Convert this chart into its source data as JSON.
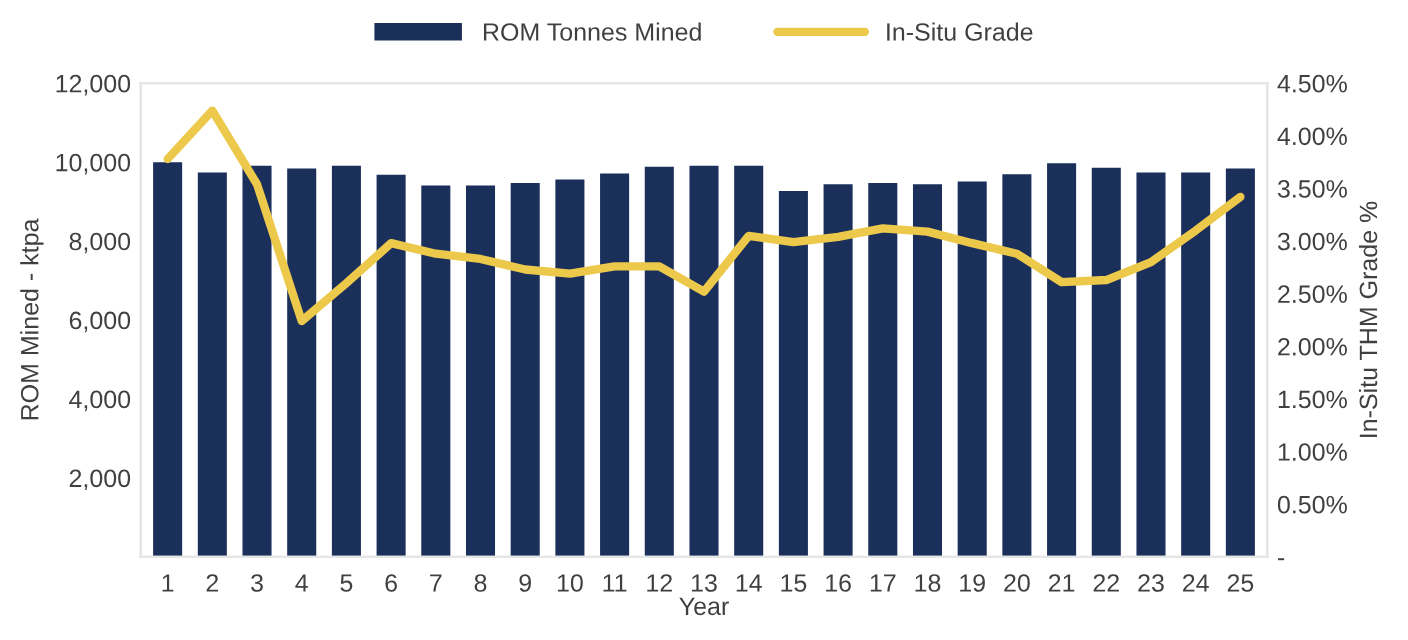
{
  "chart_data": {
    "type": "bar",
    "xlabel": "Year",
    "ylabel": "ROM Mined - ktpa",
    "y2label": "In-Situ THM Grade %",
    "categories": [
      "1",
      "2",
      "3",
      "4",
      "5",
      "6",
      "7",
      "8",
      "9",
      "10",
      "11",
      "12",
      "13",
      "14",
      "15",
      "16",
      "17",
      "18",
      "19",
      "20",
      "21",
      "22",
      "23",
      "24",
      "25"
    ],
    "series": [
      {
        "name": "ROM Tonnes Mined",
        "color": "#1b2f5b",
        "values": [
          10000,
          9740,
          9910,
          9840,
          9910,
          9680,
          9410,
          9410,
          9470,
          9560,
          9710,
          9880,
          9910,
          9910,
          9270,
          9440,
          9470,
          9440,
          9510,
          9690,
          9970,
          9860,
          9740,
          9740,
          9840
        ]
      },
      {
        "name": "In-Situ Grade",
        "type": "line",
        "axis": "y2",
        "color": "#ecc94b",
        "values": [
          3.78,
          4.24,
          3.54,
          2.24,
          2.6,
          2.98,
          2.88,
          2.83,
          2.73,
          2.69,
          2.76,
          2.76,
          2.52,
          3.05,
          2.99,
          3.04,
          3.12,
          3.09,
          2.98,
          2.88,
          2.61,
          2.63,
          2.8,
          3.1,
          3.42
        ]
      }
    ],
    "ylim": [
      0,
      12000
    ],
    "yticks": [
      {
        "value": 0,
        "label": null
      },
      {
        "value": 2000,
        "label": "2,000"
      },
      {
        "value": 4000,
        "label": "4,000"
      },
      {
        "value": 6000,
        "label": "6,000"
      },
      {
        "value": 8000,
        "label": "8,000"
      },
      {
        "value": 10000,
        "label": "10,000"
      },
      {
        "value": 12000,
        "label": "12,000"
      }
    ],
    "y2lim": [
      0,
      4.5
    ],
    "y2ticks": [
      {
        "value": 0,
        "label": "-"
      },
      {
        "value": 0.5,
        "label": "0.50%"
      },
      {
        "value": 1,
        "label": "1.00%"
      },
      {
        "value": 1.5,
        "label": "1.50%"
      },
      {
        "value": 2,
        "label": "2.00%"
      },
      {
        "value": 2.5,
        "label": "2.50%"
      },
      {
        "value": 3,
        "label": "3.00%"
      },
      {
        "value": 3.5,
        "label": "3.50%"
      },
      {
        "value": 4,
        "label": "4.00%"
      },
      {
        "value": 4.5,
        "label": "4.50%"
      }
    ],
    "grid": false,
    "legend": "top",
    "marker": "none",
    "line_style": "solid"
  }
}
